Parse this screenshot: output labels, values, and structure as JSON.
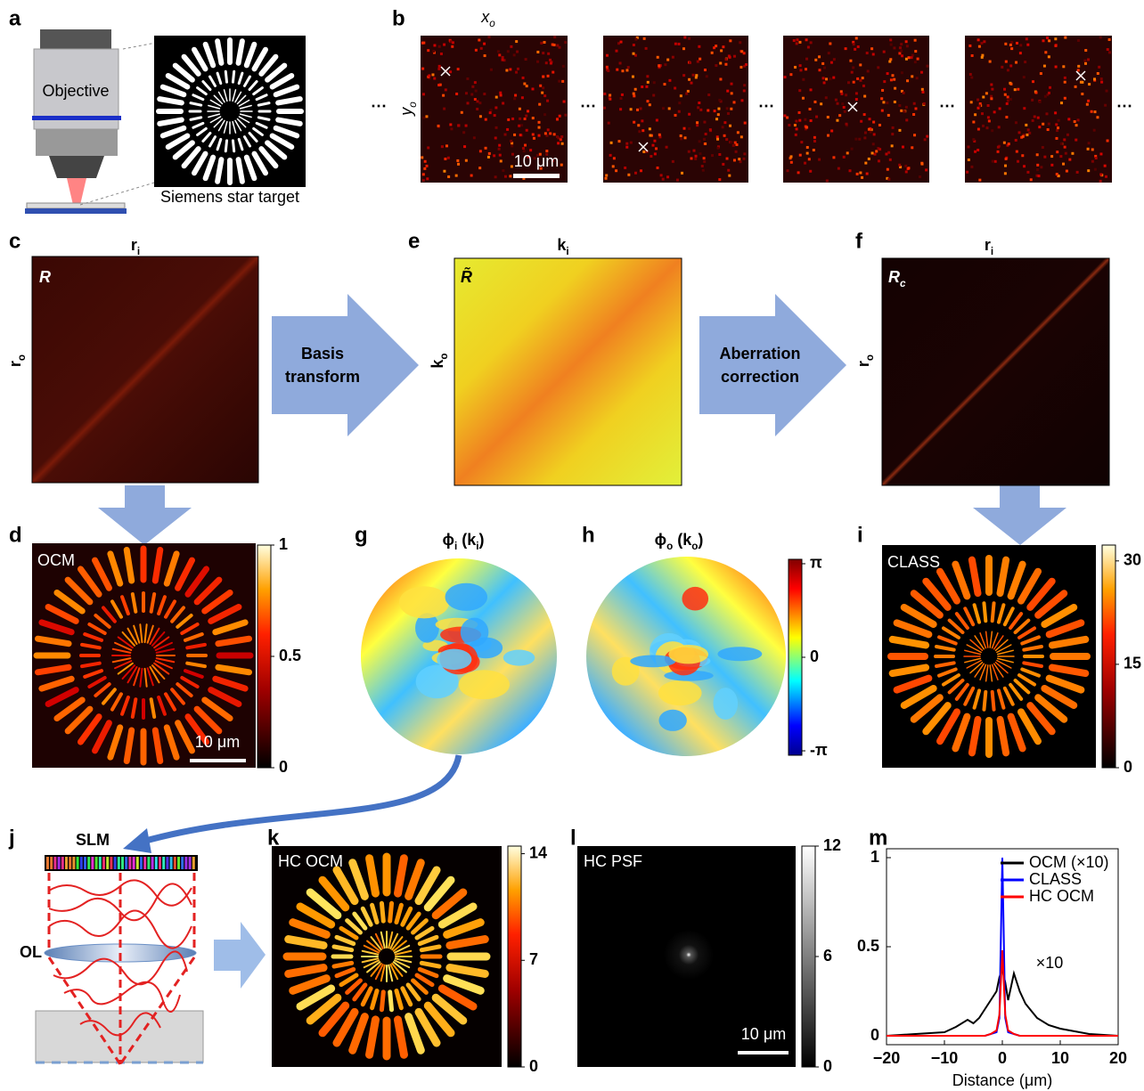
{
  "panel_labels": [
    "a",
    "b",
    "c",
    "d",
    "e",
    "f",
    "g",
    "h",
    "i",
    "j",
    "k",
    "l",
    "m"
  ],
  "a": {
    "objective": "Objective",
    "target": "Siemens star target"
  },
  "b": {
    "x_label": {
      "base": "x",
      "sub": "o"
    },
    "y_label": {
      "base": "y",
      "sub": "o"
    },
    "ellipsis": "⋯",
    "scale_bar": "10 μm"
  },
  "c": {
    "matrix": "R",
    "top_label": {
      "base": "r",
      "sub": "i"
    },
    "left_label": {
      "base": "r",
      "sub": "o"
    }
  },
  "arrow_1": [
    "Basis",
    "transform"
  ],
  "e": {
    "matrix": "R̃",
    "top_label": {
      "base": "k",
      "sub": "i"
    },
    "left_label": {
      "base": "k",
      "sub": "o"
    }
  },
  "arrow_2": [
    "Aberration",
    "correction"
  ],
  "f": {
    "matrix": {
      "base": "R",
      "sub": "c"
    },
    "top_label": {
      "base": "r",
      "sub": "i"
    },
    "left_label": {
      "base": "r",
      "sub": "o"
    }
  },
  "d": {
    "tag": "OCM",
    "scale_bar": "10 μm",
    "colorbar": {
      "clim": [
        0,
        1
      ],
      "ticks": [
        0,
        0.5,
        1
      ]
    }
  },
  "g": {
    "title": {
      "base": "ϕ",
      "sub": "i",
      "arg": " (k",
      "arg_sub": "i",
      "close": ")"
    }
  },
  "h": {
    "title": {
      "base": "ϕ",
      "sub": "o",
      "arg": " (k",
      "arg_sub": "o",
      "close": ")"
    },
    "colorbar": {
      "clim": [
        -3.29,
        3.29
      ],
      "ticks": [
        {
          "value": 3.1416,
          "label": "π"
        },
        0,
        {
          "value": -3.1416,
          "label": "-π"
        }
      ]
    }
  },
  "i": {
    "tag": "CLASS",
    "colorbar": {
      "clim": [
        0,
        32.3
      ],
      "ticks": [
        0,
        15,
        30
      ]
    }
  },
  "j": {
    "slm": "SLM",
    "ol": "OL"
  },
  "k": {
    "tag": "HC OCM",
    "colorbar": {
      "clim": [
        0,
        14.5
      ],
      "ticks": [
        0,
        7,
        14
      ]
    }
  },
  "l": {
    "tag": "HC PSF",
    "scale_bar": "10 μm",
    "colorbar": {
      "clim": [
        0,
        12
      ],
      "ticks": [
        0,
        6,
        12
      ]
    }
  },
  "chart_data": {
    "type": "line",
    "x_label": "Distance (μm)",
    "annotation": "×10",
    "legend": "top-right",
    "x": [
      -20,
      -15,
      -10,
      -8,
      -6,
      -5,
      -4,
      -3,
      -2,
      -1,
      -0.5,
      0,
      0.5,
      1,
      2,
      3,
      4,
      5,
      6,
      8,
      10,
      15,
      20
    ],
    "series": [
      {
        "name": "OCM (×10)",
        "color": "#000000",
        "values": [
          0,
          0.01,
          0.02,
          0.05,
          0.09,
          0.07,
          0.1,
          0.15,
          0.2,
          0.25,
          0.33,
          0.37,
          0.3,
          0.2,
          0.35,
          0.25,
          0.18,
          0.14,
          0.1,
          0.06,
          0.04,
          0.01,
          0
        ]
      },
      {
        "name": "CLASS",
        "color": "#0000ff",
        "values": [
          0,
          0,
          0,
          0,
          0,
          0,
          0,
          0,
          0.01,
          0.02,
          0.1,
          1,
          0.1,
          0.02,
          0.01,
          0,
          0,
          0,
          0,
          0,
          0,
          0,
          0
        ]
      },
      {
        "name": "HC OCM",
        "color": "#ff0000",
        "values": [
          0,
          0,
          0,
          0,
          0,
          0,
          0,
          0,
          0.01,
          0.03,
          0.12,
          0.48,
          0.12,
          0.03,
          0.01,
          0,
          0,
          0,
          0,
          0,
          0,
          0,
          0
        ]
      }
    ],
    "xlim": [
      -20,
      20
    ],
    "ylim": [
      -0.05,
      1.05
    ],
    "xticks": [
      {
        "value": -20,
        "label": "−20"
      },
      {
        "value": -10,
        "label": "−10"
      },
      0,
      10,
      20
    ],
    "yticks": [
      0,
      0.5,
      1
    ]
  }
}
